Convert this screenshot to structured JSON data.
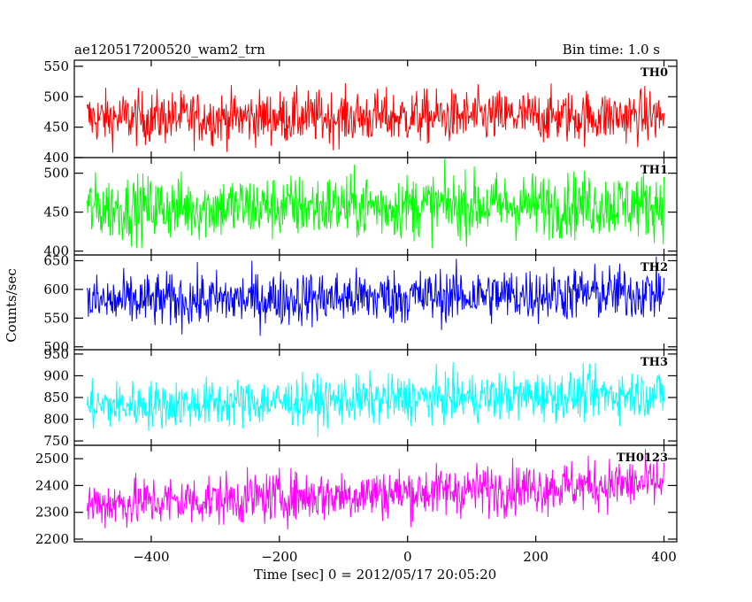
{
  "header": {
    "left": "ae120517200520_wam2_trn",
    "right": "Bin time: 1.0 s"
  },
  "chart_data": {
    "type": "line",
    "title": "ae120517200520_wam2_trn",
    "subtitle": "Bin time: 1.0 s",
    "xlabel": "Time [sec] 0 = 2012/05/17 20:05:20",
    "ylabel": "Counts/sec",
    "xlim": [
      -520,
      420
    ],
    "x_ticks": [
      -400,
      -200,
      0,
      200,
      400
    ],
    "x_tick_labels": [
      "−400",
      "−200",
      "0",
      "200",
      "400"
    ],
    "x_range_of_data": [
      -500,
      400
    ],
    "bin_time_s": 1.0,
    "grid": false,
    "panels": [
      {
        "name": "TH0",
        "color": "#ff0000",
        "ylim": [
          400,
          560
        ],
        "y_ticks": [
          400,
          450,
          500,
          550
        ],
        "y_tick_labels": [
          "400",
          "450",
          "500",
          "550"
        ],
        "mean_start": 465,
        "mean_end": 468,
        "noise": 22
      },
      {
        "name": "TH1",
        "color": "#00ff00",
        "ylim": [
          395,
          520
        ],
        "y_ticks": [
          400,
          450,
          500
        ],
        "y_tick_labels": [
          "400",
          "450",
          "500"
        ],
        "mean_start": 455,
        "mean_end": 460,
        "noise": 21
      },
      {
        "name": "TH2",
        "color": "#0000ff",
        "ylim": [
          495,
          660
        ],
        "y_ticks": [
          500,
          550,
          600,
          650
        ],
        "y_tick_labels": [
          "500",
          "550",
          "600",
          "650"
        ],
        "mean_start": 578,
        "mean_end": 595,
        "noise": 24
      },
      {
        "name": "TH3",
        "color": "#00ffff",
        "ylim": [
          740,
          960
        ],
        "y_ticks": [
          750,
          800,
          850,
          900,
          950
        ],
        "y_tick_labels": [
          "750",
          "800",
          "850",
          "900",
          "950"
        ],
        "mean_start": 830,
        "mean_end": 860,
        "noise": 28
      },
      {
        "name": "TH0123",
        "color": "#ff00ff",
        "ylim": [
          2190,
          2550
        ],
        "y_ticks": [
          2200,
          2300,
          2400,
          2500
        ],
        "y_tick_labels": [
          "2200",
          "2300",
          "2400",
          "2500"
        ],
        "mean_start": 2330,
        "mean_end": 2410,
        "noise": 48
      }
    ]
  }
}
